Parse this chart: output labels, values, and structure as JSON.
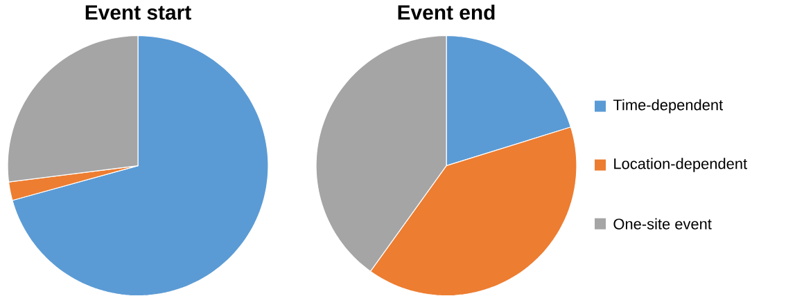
{
  "chart_data": [
    {
      "type": "pie",
      "title": "Event start",
      "categories": [
        null,
        null,
        null
      ],
      "values": [
        70.7,
        2.3,
        27.0
      ],
      "colors": [
        "#5b9bd5",
        "#ed7d31",
        "#a5a5a5"
      ],
      "legend": false
    },
    {
      "type": "pie",
      "title": "Event end",
      "categories": [
        "Time-dependent",
        "Location-dependent",
        "One-site event"
      ],
      "values": [
        20.2,
        39.7,
        40.1
      ],
      "colors": [
        "#5b9bd5",
        "#ed7d31",
        "#a5a5a5"
      ],
      "legend": "right"
    }
  ]
}
